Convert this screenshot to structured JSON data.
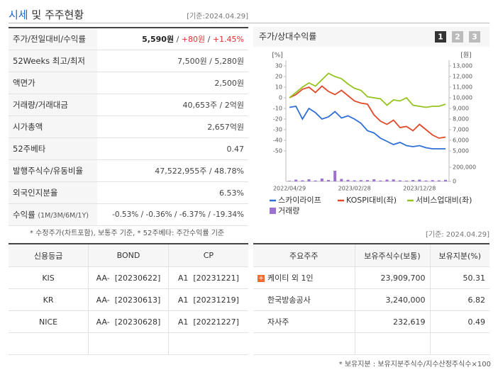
{
  "header": {
    "title_highlight": "시세",
    "title_rest": "및 주주현황",
    "as_of": "[기준:2024.04.29]"
  },
  "quote_table": {
    "rows": [
      {
        "label": "주가/전일대비/수익률",
        "value": [
          "5,590원",
          " / ",
          "+80원",
          " / ",
          "+1.45%"
        ]
      },
      {
        "label": "52Weeks 최고/최저",
        "value": "7,500원 / 5,280원"
      },
      {
        "label": "액면가",
        "value": "2,500원"
      },
      {
        "label": "거래량/거래대금",
        "value": "40,653주 / 2억원"
      },
      {
        "label": "시가총액",
        "value": "2,657억원"
      },
      {
        "label": "52주베타",
        "value": "0.47"
      },
      {
        "label": "발행주식수/유동비율",
        "value": "47,522,955주 / 48.78%"
      },
      {
        "label": "외국인지분율",
        "value": "6.53%"
      },
      {
        "label": "수익률",
        "label_sub": "(1M/3M/6M/1Y)",
        "value": "-0.53% / -0.36% / -6.37% / -19.34%"
      }
    ]
  },
  "quote_note": "* 수정주가(차트포함), 보통주 기준, * 52주베타: 주간수익률 기준",
  "chart_data": {
    "type": "line",
    "title": "주가/상대수익률",
    "buttons": [
      "1",
      "2",
      "3"
    ],
    "y_unit": "[%]",
    "y2_unit": "[원]",
    "categories": [
      "2022/04/29",
      null,
      null,
      null,
      null,
      null,
      null,
      null,
      null,
      null,
      "2023/02/28",
      null,
      null,
      null,
      null,
      null,
      null,
      null,
      null,
      null,
      "2023/12/28",
      null,
      null,
      null,
      null
    ],
    "ylim": [
      -50,
      30
    ],
    "yticks": [
      30,
      20,
      10,
      0,
      -10,
      -20,
      -30,
      -40,
      -50
    ],
    "y2lim": [
      5000,
      13000
    ],
    "y2ticks": [
      {
        "value": 13000,
        "label": "13,000"
      },
      {
        "value": 12000,
        "label": "12,000"
      },
      {
        "value": 11000,
        "label": "11,000"
      },
      {
        "value": 10000,
        "label": "10,000"
      },
      {
        "value": 9000,
        "label": "9,000"
      },
      {
        "value": 8000,
        "label": "8,000"
      },
      {
        "value": 7000,
        "label": "7,000"
      },
      {
        "value": 6000,
        "label": "6,000"
      },
      {
        "value": 5000,
        "label": "5,000"
      }
    ],
    "series": [
      {
        "name": "스카이라이프",
        "color": "#2f6fd6",
        "axis": "y2",
        "values": [
          9100,
          9200,
          8000,
          9000,
          8600,
          8000,
          8200,
          8700,
          8100,
          8300,
          8000,
          7600,
          6900,
          6700,
          6200,
          5900,
          5600,
          5800,
          5500,
          5400,
          5500,
          5300,
          5200,
          5200,
          5200
        ]
      },
      {
        "name": "KOSPI대비(좌)",
        "color": "#e0492a",
        "values": [
          0,
          3,
          8,
          10,
          5,
          11,
          6,
          3,
          7,
          2,
          -3,
          -5,
          -6,
          -16,
          -22,
          -25,
          -21,
          -28,
          -27,
          -31,
          -25,
          -30,
          -35,
          -38,
          -37
        ]
      },
      {
        "name": "서비스업대비(좌)",
        "color": "#96c41e",
        "values": [
          0,
          5,
          10,
          14,
          11,
          17,
          23,
          20,
          18,
          13,
          9,
          7,
          1,
          0,
          -1,
          -7,
          -2,
          -3,
          0,
          -7,
          -8,
          -9,
          -8,
          -8,
          -6
        ]
      }
    ],
    "volume": {
      "name": "거래량",
      "color": "#9b72cf",
      "ylim": [
        0,
        200000
      ],
      "yticks": [
        {
          "value": 200000,
          "label": "200,000"
        },
        0
      ],
      "values": [
        8000,
        25000,
        15000,
        30000,
        12000,
        40000,
        20000,
        150000,
        35000,
        22000,
        15000,
        18000,
        18000,
        30000,
        12000,
        25000,
        28000,
        15000,
        10000,
        20000,
        25000,
        12000,
        18000,
        15000,
        22000
      ]
    }
  },
  "rating_table": {
    "header": [
      "신용등급",
      "BOND",
      "CP"
    ],
    "rows": [
      [
        "KIS",
        "AA-  [20230622]",
        "A1  [20231221]"
      ],
      [
        "KR",
        "AA-  [20230613]",
        "A1  [20231219]"
      ],
      [
        "NICE",
        "AA-  [20230628]",
        "A1  [20221227]"
      ]
    ]
  },
  "holders_as_of": "[기준: 2024.04.29]",
  "holders_table": {
    "header": [
      "주요주주",
      "보유주식수(보통)",
      "보유지분(%)"
    ],
    "rows": [
      [
        "케이티 외 1인",
        "23,909,700",
        "50.31"
      ],
      [
        "한국방송공사",
        "3,240,000",
        "6.82"
      ],
      [
        "자사주",
        "232,619",
        "0.49"
      ]
    ]
  },
  "holders_note": "* 보유지분 : 보유지분주식수/지수산정주식수×100"
}
